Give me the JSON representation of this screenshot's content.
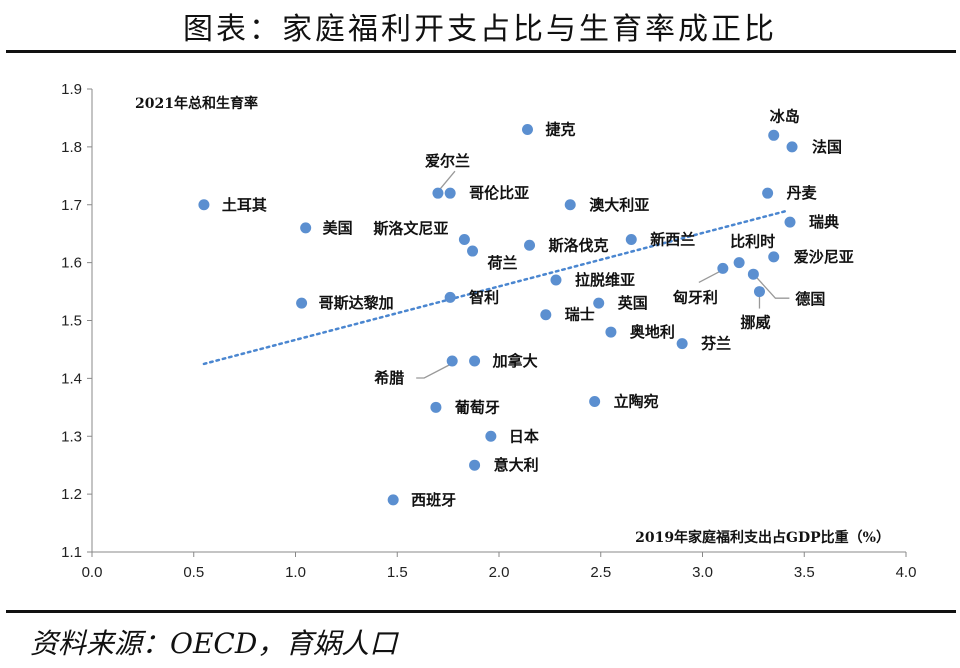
{
  "title": "图表：家庭福利开支占比与生育率成正比",
  "source": "资料来源：OECD，育娲人口",
  "chart_data": {
    "type": "scatter",
    "ylabel": "2021年总和生育率",
    "xlabel": "2019年家庭福利支出占GDP比重（%）",
    "xlim": [
      0,
      4
    ],
    "ylim": [
      1.1,
      1.9
    ],
    "xticks": [
      "0.0",
      "0.5",
      "1.0",
      "1.5",
      "2.0",
      "2.5",
      "3.0",
      "3.5",
      "4.0"
    ],
    "yticks": [
      "1.1",
      "1.2",
      "1.3",
      "1.4",
      "1.5",
      "1.6",
      "1.7",
      "1.8",
      "1.9"
    ],
    "grid": false,
    "marker_color": "#5b8fd0",
    "trendline": {
      "style": "dotted",
      "color": "#4a86d0",
      "x": [
        0.55,
        3.42
      ],
      "y": [
        1.425,
        1.69
      ]
    },
    "points": [
      {
        "label": "土耳其",
        "x": 0.55,
        "y": 1.7
      },
      {
        "label": "美国",
        "x": 1.05,
        "y": 1.66
      },
      {
        "label": "哥斯达黎加",
        "x": 1.03,
        "y": 1.53
      },
      {
        "label": "爱尔兰",
        "x": 1.7,
        "y": 1.72
      },
      {
        "label": "哥伦比亚",
        "x": 1.76,
        "y": 1.72
      },
      {
        "label": "斯洛文尼亚",
        "x": 1.83,
        "y": 1.64
      },
      {
        "label": "荷兰",
        "x": 1.87,
        "y": 1.62
      },
      {
        "label": "智利",
        "x": 1.76,
        "y": 1.54
      },
      {
        "label": "希腊",
        "x": 1.77,
        "y": 1.43
      },
      {
        "label": "加拿大",
        "x": 1.88,
        "y": 1.43
      },
      {
        "label": "葡萄牙",
        "x": 1.69,
        "y": 1.35
      },
      {
        "label": "日本",
        "x": 1.96,
        "y": 1.3
      },
      {
        "label": "意大利",
        "x": 1.88,
        "y": 1.25
      },
      {
        "label": "西班牙",
        "x": 1.48,
        "y": 1.19
      },
      {
        "label": "捷克",
        "x": 2.14,
        "y": 1.83
      },
      {
        "label": "澳大利亚",
        "x": 2.35,
        "y": 1.7
      },
      {
        "label": "斯洛伐克",
        "x": 2.15,
        "y": 1.63
      },
      {
        "label": "拉脱维亚",
        "x": 2.28,
        "y": 1.57
      },
      {
        "label": "瑞士",
        "x": 2.23,
        "y": 1.51
      },
      {
        "label": "英国",
        "x": 2.49,
        "y": 1.53
      },
      {
        "label": "新西兰",
        "x": 2.65,
        "y": 1.64
      },
      {
        "label": "奥地利",
        "x": 2.55,
        "y": 1.48
      },
      {
        "label": "立陶宛",
        "x": 2.47,
        "y": 1.36
      },
      {
        "label": "芬兰",
        "x": 2.9,
        "y": 1.46
      },
      {
        "label": "冰岛",
        "x": 3.35,
        "y": 1.82
      },
      {
        "label": "法国",
        "x": 3.44,
        "y": 1.8
      },
      {
        "label": "丹麦",
        "x": 3.32,
        "y": 1.72
      },
      {
        "label": "瑞典",
        "x": 3.43,
        "y": 1.67
      },
      {
        "label": "比利时",
        "x": 3.18,
        "y": 1.6
      },
      {
        "label": "爱沙尼亚",
        "x": 3.35,
        "y": 1.61
      },
      {
        "label": "匈牙利",
        "x": 3.1,
        "y": 1.59
      },
      {
        "label": "德国",
        "x": 3.25,
        "y": 1.58
      },
      {
        "label": "挪威",
        "x": 3.28,
        "y": 1.55
      }
    ]
  }
}
